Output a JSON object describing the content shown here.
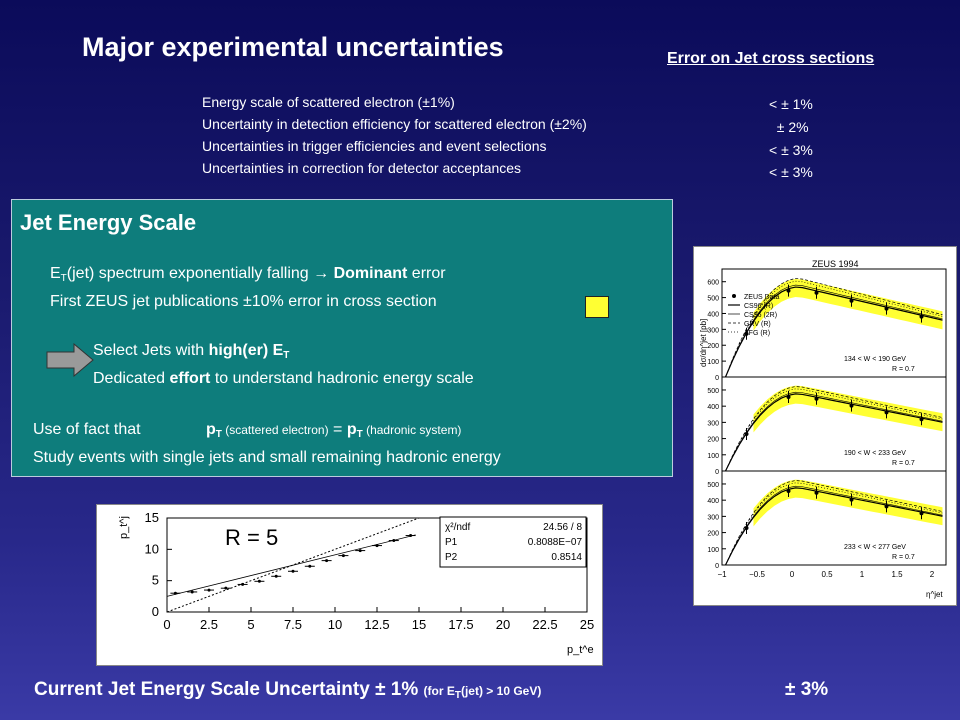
{
  "title": "Major experimental uncertainties",
  "error_heading": "Error on Jet cross sections",
  "uncertainties": [
    {
      "label": "Energy scale of scattered electron (±1%)",
      "value": "< ± 1%"
    },
    {
      "label": "Uncertainty in detection efficiency for scattered electron (±2%)",
      "value": "  ± 2%"
    },
    {
      "label": "Uncertainties in trigger efficiencies and event selections",
      "value": "< ± 3%"
    },
    {
      "label": "Uncertainties in correction for detector acceptances",
      "value": "< ± 3%"
    }
  ],
  "jes": {
    "heading": "Jet Energy Scale",
    "line1_pre": "E",
    "line1_sub": "T",
    "line1_mid": "(jet) spectrum exponentially falling → ",
    "line1_bold": "Dominant",
    "line1_post": " error",
    "line2": "First ZEUS jet publications ±10% error in cross section",
    "line3_pre": "Select Jets with ",
    "line3_bold": "high(er) E",
    "line3_sub": "T",
    "line4_pre": "Dedicated ",
    "line4_bold": "effort",
    "line4_post": " to understand hadronic energy scale",
    "line5_pre": "Use of fact that",
    "line5_p1": "p",
    "line5_s1": "T",
    "line5_t1": " (scattered electron)",
    "line5_eq": " = ",
    "line5_p2": "p",
    "line5_s2": "T",
    "line5_t2": " (hadronic system)",
    "line6": "Study events with single jets and small remaining hadronic energy"
  },
  "pt_plot": {
    "label": "R = 5",
    "ylabel": "p_t^j",
    "xlabel": "p_t^e",
    "x_ticks": [
      "0",
      "2.5",
      "5",
      "7.5",
      "10",
      "12.5",
      "15",
      "17.5",
      "20",
      "22.5",
      "25"
    ],
    "y_ticks": [
      "0",
      "5",
      "10",
      "15"
    ],
    "stats": [
      [
        "χ²/ndf",
        "24.56  /  8"
      ],
      [
        "P1",
        "0.8088E−07"
      ],
      [
        "P2",
        "0.8514"
      ]
    ],
    "points_x": [
      0.5,
      1.5,
      2.5,
      3.5,
      4.5,
      5.5,
      6.5,
      7.5,
      8.5,
      9.5,
      10.5,
      11.5,
      12.5,
      13.5,
      14.5
    ],
    "points_y": [
      3.0,
      3.2,
      3.5,
      3.8,
      4.4,
      4.9,
      5.7,
      6.5,
      7.3,
      8.2,
      9.0,
      9.8,
      10.6,
      11.4,
      12.2
    ]
  },
  "zeus_plot": {
    "title": "ZEUS 1994",
    "ylabel": "dσ/dη^jet [pb]",
    "xlabel": "η^jet",
    "legend": [
      "ZEUS Data",
      "CS96 (R)",
      "CS96 (2R)",
      "GRV (R)",
      "AFG (R)"
    ],
    "panels": [
      {
        "range": "134 < W < 190 GeV",
        "r": "R = 0.7",
        "ticks": [
          "0",
          "100",
          "200",
          "300",
          "400",
          "500",
          "600"
        ]
      },
      {
        "range": "190 < W < 233 GeV",
        "r": "R = 0.7",
        "ticks": [
          "0",
          "100",
          "200",
          "300",
          "400",
          "500"
        ]
      },
      {
        "range": "233 < W < 277 GeV",
        "r": "R = 0.7",
        "ticks": [
          "0",
          "100",
          "200",
          "300",
          "400",
          "500"
        ]
      }
    ],
    "x_ticks": [
      "−1",
      "−0.5",
      "0",
      "0.5",
      "1",
      "1.5",
      "2"
    ]
  },
  "footer": {
    "main": "Current Jet Energy Scale Uncertainty ± 1%",
    "note_pre": "(for E",
    "note_sub": "T",
    "note_post": "(jet) > 10 GeV)",
    "value": "± 3%"
  }
}
